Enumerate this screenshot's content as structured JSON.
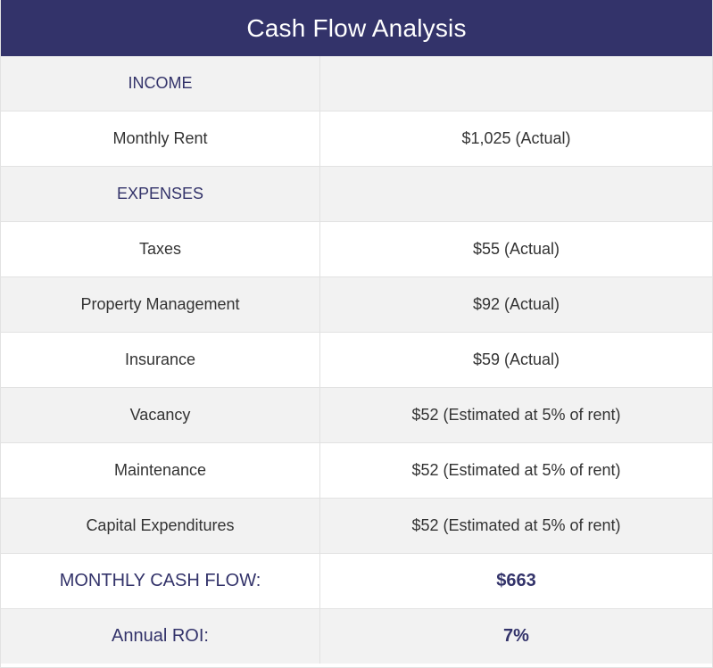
{
  "title": "Cash Flow Analysis",
  "rows": [
    {
      "label": "INCOME",
      "value": ""
    },
    {
      "label": "Monthly Rent",
      "value": "$1,025 (Actual)"
    },
    {
      "label": "EXPENSES",
      "value": ""
    },
    {
      "label": "Taxes",
      "value": "$55 (Actual)"
    },
    {
      "label": "Property Management",
      "value": "$92 (Actual)"
    },
    {
      "label": "Insurance",
      "value": "$59 (Actual)"
    },
    {
      "label": "Vacancy",
      "value": "$52 (Estimated at 5% of rent)"
    },
    {
      "label": "Maintenance",
      "value": "$52 (Estimated at 5% of rent)"
    },
    {
      "label": "Capital Expenditures",
      "value": "$52 (Estimated at 5% of rent)"
    },
    {
      "label": "MONTHLY CASH FLOW:",
      "value": "$663"
    },
    {
      "label": "Annual ROI:",
      "value": "7%"
    }
  ],
  "colors": {
    "header_bg": "#33336a",
    "accent_text": "#33336a",
    "shaded_row": "#f2f2f2"
  }
}
